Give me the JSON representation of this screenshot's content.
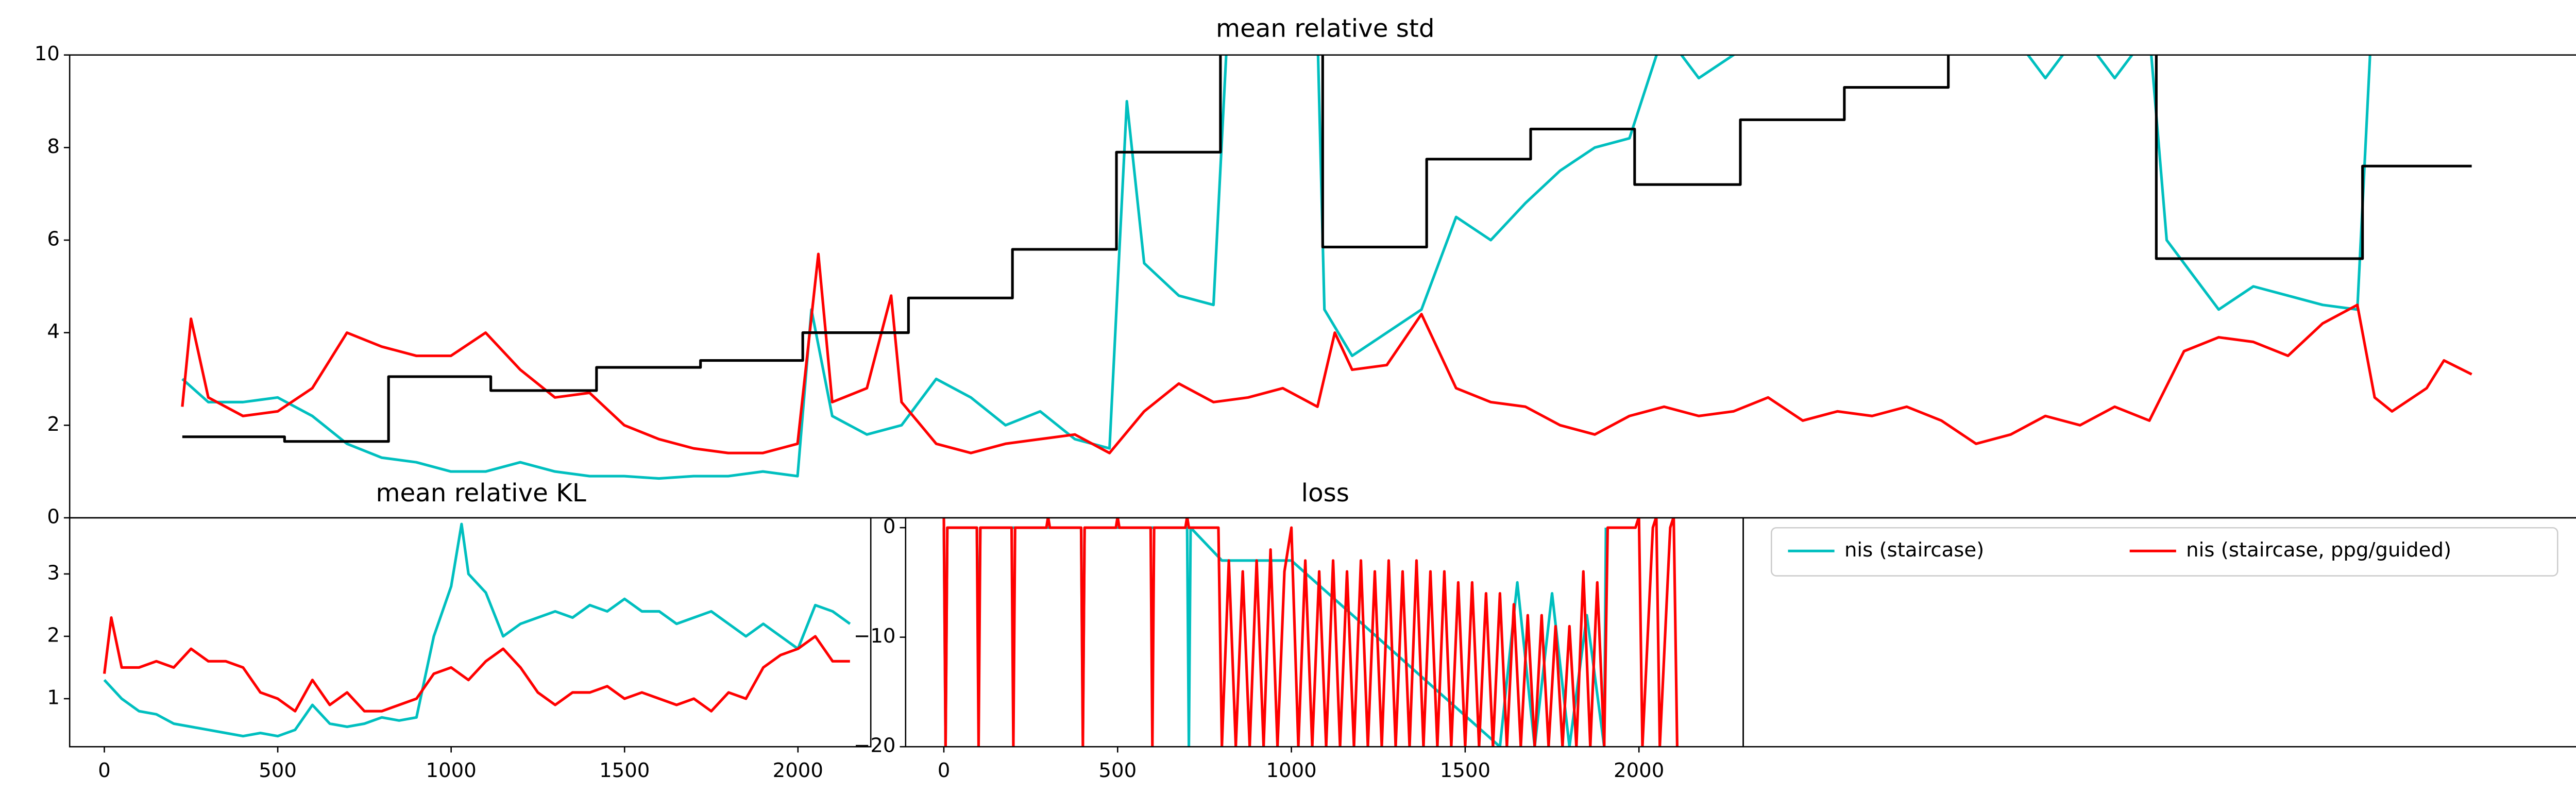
{
  "chart_data": [
    {
      "type": "line",
      "title": "mean relative std",
      "xlim": [
        -100,
        7140
      ],
      "ylim": [
        0,
        10
      ],
      "yticks": [
        0,
        2,
        4,
        6,
        8,
        10
      ],
      "series": [
        {
          "name": "nis (staircase)",
          "color": "#00bfbf",
          "x": [
            225,
            300,
            400,
            500,
            600,
            700,
            800,
            900,
            1000,
            1100,
            1200,
            1300,
            1400,
            1500,
            1600,
            1700,
            1800,
            1900,
            2000,
            2040,
            2100,
            2200,
            2300,
            2400,
            2500,
            2600,
            2700,
            2800,
            2900,
            2950,
            3000,
            3100,
            3200,
            3240,
            3300,
            3400,
            3500,
            3520,
            3600,
            3700,
            3800,
            3900,
            4000,
            4100,
            4200,
            4300,
            4400,
            4500,
            4600,
            4700,
            4800,
            4900,
            5000,
            5100,
            5200,
            5300,
            5400,
            5500,
            5600,
            5700,
            5800,
            5900,
            5950,
            6000,
            6100,
            6200,
            6300,
            6400,
            6500,
            6540,
            6580
          ],
          "values": [
            3.0,
            2.5,
            2.5,
            2.6,
            2.2,
            1.6,
            1.3,
            1.2,
            1.0,
            1.0,
            1.2,
            1.0,
            0.9,
            0.9,
            0.85,
            0.9,
            0.9,
            1.0,
            0.9,
            4.5,
            2.2,
            1.8,
            2.0,
            3.0,
            2.6,
            2.0,
            2.3,
            1.7,
            1.5,
            9.0,
            5.5,
            4.8,
            4.6,
            10.5,
            10.5,
            10.5,
            10.5,
            4.5,
            3.5,
            4.0,
            4.5,
            6.5,
            6.0,
            6.8,
            7.5,
            8.0,
            8.2,
            10.5,
            9.5,
            10.0,
            10.5,
            10.5,
            10.5,
            10.5,
            10.5,
            10.5,
            10.5,
            10.5,
            9.5,
            10.5,
            9.5,
            10.5,
            6.0,
            5.5,
            4.5,
            5.0,
            4.8,
            4.6,
            4.5,
            10.5,
            10.5
          ]
        },
        {
          "name": "nis (staircase, ppg/guided)",
          "color": "#ff0000",
          "x": [
            225,
            250,
            300,
            400,
            500,
            600,
            700,
            800,
            900,
            1000,
            1100,
            1200,
            1300,
            1400,
            1500,
            1600,
            1700,
            1800,
            1900,
            2000,
            2060,
            2100,
            2200,
            2270,
            2300,
            2400,
            2500,
            2600,
            2700,
            2800,
            2900,
            3000,
            3100,
            3200,
            3300,
            3400,
            3500,
            3550,
            3600,
            3700,
            3800,
            3900,
            4000,
            4100,
            4200,
            4300,
            4400,
            4500,
            4600,
            4700,
            4800,
            4900,
            5000,
            5100,
            5200,
            5300,
            5400,
            5500,
            5600,
            5700,
            5800,
            5900,
            6000,
            6100,
            6200,
            6300,
            6400,
            6500,
            6550,
            6600,
            6700,
            6750,
            6830
          ],
          "values": [
            2.4,
            4.3,
            2.6,
            2.2,
            2.3,
            2.8,
            4.0,
            3.7,
            3.5,
            3.5,
            4.0,
            3.2,
            2.6,
            2.7,
            2.0,
            1.7,
            1.5,
            1.4,
            1.4,
            1.6,
            5.7,
            2.5,
            2.8,
            4.8,
            2.5,
            1.6,
            1.4,
            1.6,
            1.7,
            1.8,
            1.4,
            2.3,
            2.9,
            2.5,
            2.6,
            2.8,
            2.4,
            4.0,
            3.2,
            3.3,
            4.4,
            2.8,
            2.5,
            2.4,
            2.0,
            1.8,
            2.2,
            2.4,
            2.2,
            2.3,
            2.6,
            2.1,
            2.3,
            2.2,
            2.4,
            2.1,
            1.6,
            1.8,
            2.2,
            2.0,
            2.4,
            2.1,
            3.6,
            3.9,
            3.8,
            3.5,
            4.2,
            4.6,
            2.6,
            2.3,
            2.8,
            3.4,
            3.1
          ]
        },
        {
          "color": "#000000",
          "drawstyle": "steps-post",
          "x": [
            225,
            520,
            820,
            1115,
            1420,
            1720,
            2015,
            2320,
            2620,
            2920,
            3220,
            3515,
            3815,
            4115,
            4415,
            4720,
            5020,
            5320,
            5920,
            6515,
            6830
          ],
          "values": [
            1.75,
            1.65,
            3.05,
            2.75,
            3.25,
            3.4,
            4.0,
            4.75,
            5.8,
            7.9,
            10.5,
            5.85,
            7.75,
            8.4,
            7.2,
            8.6,
            9.3,
            10.5,
            5.6,
            7.6,
            7.6
          ]
        }
      ]
    },
    {
      "type": "line",
      "title": "mean relative KL",
      "xlim": [
        -100,
        2210
      ],
      "ylim": [
        0.23,
        3.9
      ],
      "xticks": [
        0,
        500,
        1000,
        1500,
        2000
      ],
      "yticks": [
        1,
        2,
        3
      ],
      "series": [
        {
          "color": "#00bfbf",
          "x": [
            0,
            50,
            100,
            150,
            200,
            250,
            300,
            350,
            400,
            450,
            500,
            550,
            600,
            650,
            700,
            750,
            800,
            850,
            900,
            950,
            1000,
            1030,
            1050,
            1100,
            1150,
            1200,
            1250,
            1300,
            1350,
            1400,
            1450,
            1500,
            1550,
            1600,
            1650,
            1700,
            1750,
            1800,
            1850,
            1900,
            1950,
            2000,
            2050,
            2100,
            2150
          ],
          "values": [
            1.3,
            1.0,
            0.8,
            0.75,
            0.6,
            0.55,
            0.5,
            0.45,
            0.4,
            0.45,
            0.4,
            0.5,
            0.9,
            0.6,
            0.55,
            0.6,
            0.7,
            0.65,
            0.7,
            2.0,
            2.8,
            3.8,
            3.0,
            2.7,
            2.0,
            2.2,
            2.3,
            2.4,
            2.3,
            2.5,
            2.4,
            2.6,
            2.4,
            2.4,
            2.2,
            2.3,
            2.4,
            2.2,
            2.0,
            2.2,
            2.0,
            1.8,
            2.5,
            2.4,
            2.2
          ]
        },
        {
          "color": "#ff0000",
          "x": [
            0,
            20,
            50,
            100,
            150,
            200,
            250,
            300,
            350,
            400,
            450,
            500,
            550,
            600,
            650,
            700,
            750,
            800,
            850,
            900,
            950,
            1000,
            1050,
            1100,
            1150,
            1200,
            1250,
            1300,
            1350,
            1400,
            1450,
            1500,
            1550,
            1600,
            1650,
            1700,
            1750,
            1800,
            1850,
            1900,
            1950,
            2000,
            2050,
            2100,
            2150
          ],
          "values": [
            1.4,
            2.3,
            1.5,
            1.5,
            1.6,
            1.5,
            1.8,
            1.6,
            1.6,
            1.5,
            1.1,
            1.0,
            0.8,
            1.3,
            0.9,
            1.1,
            0.8,
            0.8,
            0.9,
            1.0,
            1.4,
            1.5,
            1.3,
            1.6,
            1.8,
            1.5,
            1.1,
            0.9,
            1.1,
            1.1,
            1.2,
            1.0,
            1.1,
            1.0,
            0.9,
            1.0,
            0.8,
            1.1,
            1.0,
            1.5,
            1.7,
            1.8,
            2.0,
            1.6,
            1.6
          ]
        }
      ]
    },
    {
      "type": "line",
      "title": "loss",
      "xlim": [
        -110,
        2300
      ],
      "ylim": [
        -20,
        0.9
      ],
      "xticks": [
        0,
        500,
        1000,
        1500,
        2000
      ],
      "yticks": [
        0,
        {
          "value": -10,
          "label": "−10"
        },
        {
          "value": -20,
          "label": "−20"
        }
      ],
      "series": [
        {
          "color": "#00bfbf",
          "x": [
            0,
            5,
            10,
            95,
            100,
            105,
            395,
            400,
            405,
            700,
            705,
            710,
            800,
            1000,
            1600,
            1650,
            1700,
            1750,
            1800,
            1850,
            1900,
            1905
          ],
          "values": [
            0,
            -20,
            0,
            0,
            -14,
            0,
            0,
            -19,
            0,
            0,
            -20,
            0,
            -3,
            -3,
            -20,
            -5,
            -20,
            -6,
            -20,
            -8,
            -20,
            0
          ]
        },
        {
          "color": "#ff0000",
          "x": [
            0,
            5,
            10,
            95,
            100,
            105,
            195,
            200,
            205,
            295,
            300,
            305,
            395,
            400,
            405,
            495,
            500,
            505,
            595,
            600,
            605,
            695,
            700,
            705,
            790,
            800,
            820,
            840,
            860,
            880,
            900,
            920,
            940,
            960,
            980,
            1000,
            1020,
            1040,
            1060,
            1080,
            1100,
            1120,
            1140,
            1160,
            1180,
            1200,
            1220,
            1240,
            1260,
            1280,
            1300,
            1320,
            1340,
            1360,
            1380,
            1400,
            1420,
            1440,
            1460,
            1480,
            1500,
            1520,
            1540,
            1560,
            1580,
            1600,
            1620,
            1640,
            1660,
            1680,
            1700,
            1720,
            1740,
            1760,
            1780,
            1800,
            1820,
            1840,
            1860,
            1880,
            1900,
            1910,
            1990,
            2000,
            2010,
            2040,
            2050,
            2060,
            2090,
            2100,
            2110
          ],
          "values": [
            1,
            -20,
            0,
            0,
            -20,
            0,
            0,
            -20,
            0,
            0,
            1,
            0,
            0,
            -20,
            0,
            0,
            1,
            0,
            0,
            -20,
            0,
            0,
            1,
            0,
            0,
            -20,
            -3,
            -20,
            -4,
            -20,
            -3,
            -20,
            -2,
            -20,
            -4,
            0,
            -20,
            -3,
            -20,
            -4,
            -20,
            -3,
            -20,
            -4,
            -20,
            -3,
            -20,
            -4,
            -20,
            -3,
            -20,
            -4,
            -20,
            -3,
            -20,
            -4,
            -20,
            -4,
            -20,
            -5,
            -20,
            -5,
            -20,
            -6,
            -20,
            -6,
            -20,
            -7,
            -20,
            -8,
            -20,
            -8,
            -20,
            -9,
            -20,
            -9,
            -20,
            -4,
            -20,
            -5,
            -20,
            0,
            0,
            1,
            -20,
            0,
            1,
            -20,
            0,
            1,
            -20
          ]
        }
      ]
    }
  ]
}
